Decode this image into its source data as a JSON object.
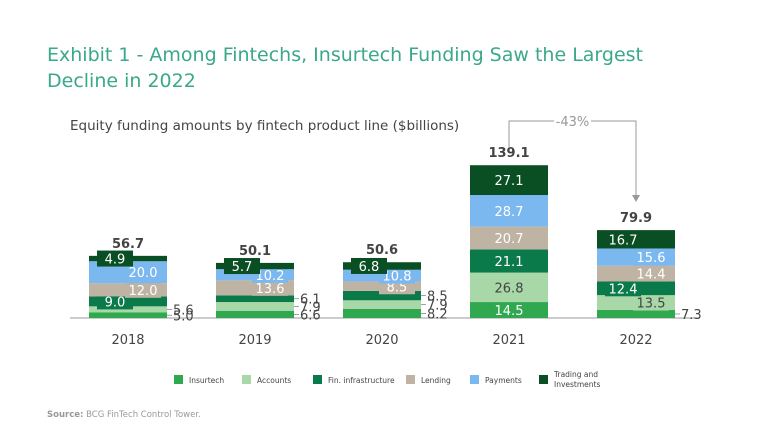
{
  "title": "Exhibit 1 - Among Fintechs, Insurtech Funding Saw the Largest Decline in 2022",
  "source_label": "Source:",
  "source_text": "BCG FinTech Control Tower.",
  "chart_data": {
    "type": "bar",
    "stacked": true,
    "title": "Exhibit 1 - Among Fintechs, Insurtech Funding Saw the Largest Decline in 2022",
    "subtitle": "Equity funding amounts by fintech product line ($billions)",
    "xlabel": "",
    "ylabel": "",
    "categories": [
      "2018",
      "2019",
      "2020",
      "2021",
      "2022"
    ],
    "totals": [
      "56.7",
      "50.1",
      "50.6",
      "139.1",
      "79.9"
    ],
    "series": [
      {
        "name": "Insurtech",
        "color": "#2fa84f",
        "values": [
          5.0,
          6.6,
          8.2,
          14.5,
          7.3
        ]
      },
      {
        "name": "Accounts",
        "color": "#a8d8a8",
        "values": [
          5.6,
          7.9,
          7.9,
          26.8,
          13.5
        ]
      },
      {
        "name": "Fin. infrastructure",
        "color": "#0b7a4b",
        "values": [
          9.0,
          6.1,
          8.5,
          21.1,
          12.4
        ]
      },
      {
        "name": "Lending",
        "color": "#bfb3a3",
        "values": [
          12.0,
          13.6,
          8.5,
          20.7,
          14.4
        ]
      },
      {
        "name": "Payments",
        "color": "#7bb8f0",
        "values": [
          20.0,
          10.2,
          10.8,
          28.7,
          15.6
        ]
      },
      {
        "name": "Trading and Investments",
        "color": "#0a4f24",
        "values": [
          4.9,
          5.7,
          6.8,
          27.1,
          16.7
        ]
      }
    ],
    "annotations": [
      {
        "text": "-43%",
        "from": "2021",
        "to": "2022"
      }
    ],
    "legend_position": "bottom",
    "grid": false,
    "ylim": [
      0,
      140
    ]
  }
}
